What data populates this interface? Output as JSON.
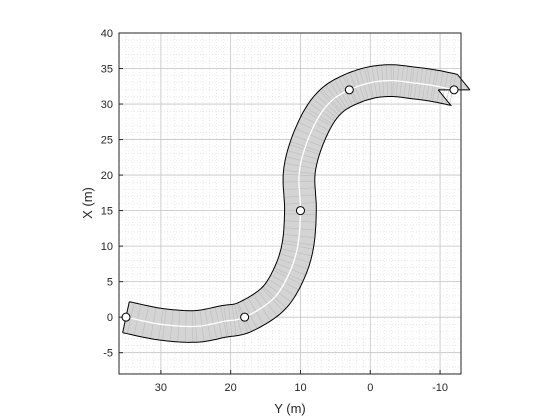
{
  "chart_data": {
    "type": "scatter",
    "title": "",
    "xlabel": "Y (m)",
    "ylabel": "X (m)",
    "x_axis": {
      "quantity": "Y",
      "reversed": true,
      "lim": [
        36,
        -13
      ],
      "ticks": [
        30,
        20,
        10,
        0,
        -10
      ]
    },
    "y_axis": {
      "quantity": "X",
      "lim": [
        -8,
        40
      ],
      "ticks": [
        -5,
        0,
        5,
        10,
        15,
        20,
        25,
        30,
        35,
        40
      ]
    },
    "grid": {
      "major": true,
      "minor": true
    },
    "road": {
      "fill_color": "#d4d4d4",
      "edge_color": "#000000",
      "centerline_color": "#ffffff",
      "width_m": 4.5
    },
    "waypoints": [
      {
        "x": 0,
        "y": 35
      },
      {
        "x": 0,
        "y": 18
      },
      {
        "x": 15,
        "y": 10
      },
      {
        "x": 32,
        "y": 3
      },
      {
        "x": 32,
        "y": -12
      }
    ],
    "centerline": [
      {
        "x": 0.0,
        "y": 35.0
      },
      {
        "x": -1.0,
        "y": 30.0
      },
      {
        "x": -1.3,
        "y": 25.0
      },
      {
        "x": -0.6,
        "y": 21.0
      },
      {
        "x": 0.0,
        "y": 18.0
      },
      {
        "x": 2.5,
        "y": 14.0
      },
      {
        "x": 6.0,
        "y": 11.7
      },
      {
        "x": 10.0,
        "y": 10.4
      },
      {
        "x": 15.0,
        "y": 10.0
      },
      {
        "x": 20.0,
        "y": 10.2
      },
      {
        "x": 24.0,
        "y": 9.3
      },
      {
        "x": 28.0,
        "y": 7.5
      },
      {
        "x": 30.5,
        "y": 5.5
      },
      {
        "x": 32.0,
        "y": 3.0
      },
      {
        "x": 33.0,
        "y": 0.0
      },
      {
        "x": 33.3,
        "y": -3.0
      },
      {
        "x": 33.0,
        "y": -6.0
      },
      {
        "x": 32.6,
        "y": -9.0
      },
      {
        "x": 32.0,
        "y": -12.0
      }
    ]
  }
}
